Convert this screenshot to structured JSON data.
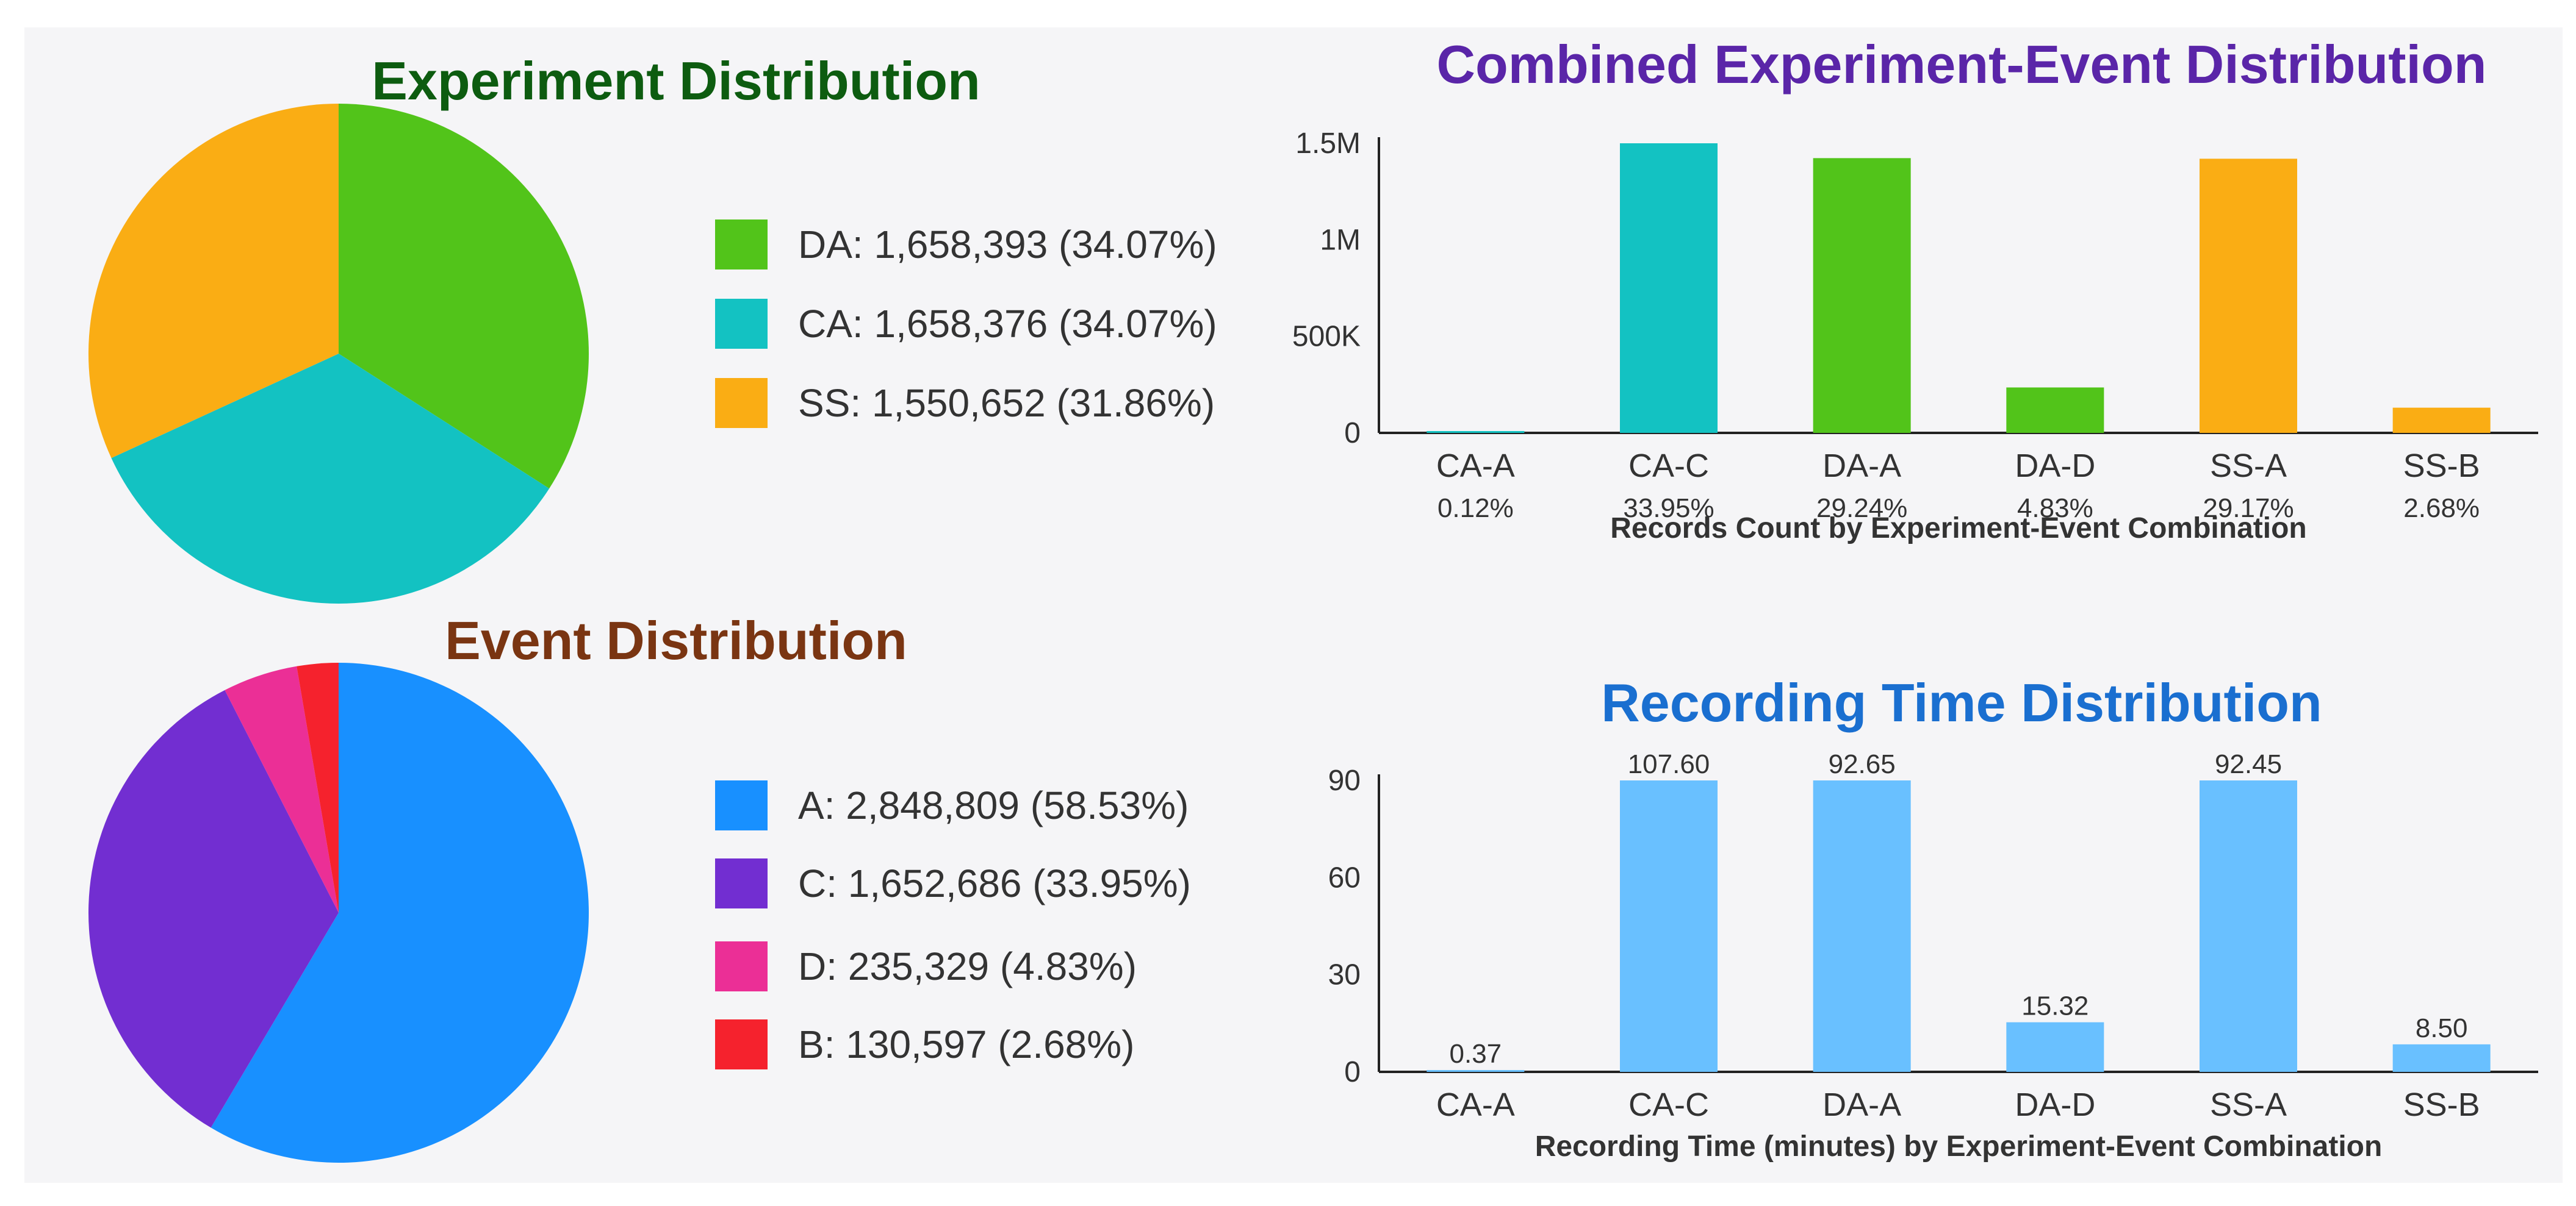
{
  "colors": {
    "DA": "#52c41a",
    "CA": "#13c2c2",
    "SS": "#faad14",
    "A": "#1890ff",
    "C": "#722ed1",
    "D": "#eb2f96",
    "B": "#f5222d",
    "time_bar": "#69c0ff"
  },
  "chart_data": [
    {
      "type": "pie",
      "title": "Experiment Distribution",
      "slices": [
        {
          "key": "DA",
          "value": 1658393,
          "legend": "DA: 1,658,393 (34.07%)"
        },
        {
          "key": "CA",
          "value": 1658376,
          "legend": "CA: 1,658,376 (34.07%)"
        },
        {
          "key": "SS",
          "value": 1550652,
          "legend": "SS: 1,550,652 (31.86%)"
        }
      ]
    },
    {
      "type": "pie",
      "title": "Event Distribution",
      "slices": [
        {
          "key": "A",
          "value": 2848809,
          "legend": "A: 2,848,809 (58.53%)"
        },
        {
          "key": "C",
          "value": 1652686,
          "legend": "C: 1,652,686 (33.95%)"
        },
        {
          "key": "D",
          "value": 235329,
          "legend": "D: 235,329 (4.83%)"
        },
        {
          "key": "B",
          "value": 130597,
          "legend": "B: 130,597 (2.68%)"
        }
      ]
    },
    {
      "type": "bar",
      "title": "Combined Experiment-Event Distribution",
      "xlabel": "Records Count by Experiment-Event Combination",
      "categories": [
        "CA-A",
        "CA-C",
        "DA-A",
        "DA-D",
        "SS-A",
        "SS-B"
      ],
      "values": [
        5700,
        1652686,
        1423100,
        235329,
        1420000,
        130597
      ],
      "percent_labels": [
        "0.12%",
        "33.95%",
        "29.24%",
        "4.83%",
        "29.17%",
        "2.68%"
      ],
      "bar_color_keys": [
        "CA",
        "CA",
        "DA",
        "DA",
        "SS",
        "SS"
      ],
      "ylim": [
        0,
        1500000
      ],
      "yticks": [
        0,
        500000,
        1000000,
        1500000
      ],
      "ytick_labels": [
        "0",
        "500K",
        "1M",
        "1.5M"
      ]
    },
    {
      "type": "bar",
      "title": "Recording Time Distribution",
      "xlabel": "Recording Time (minutes) by Experiment-Event Combination",
      "categories": [
        "CA-A",
        "CA-C",
        "DA-A",
        "DA-D",
        "SS-A",
        "SS-B"
      ],
      "values": [
        0.37,
        107.6,
        92.65,
        15.32,
        92.45,
        8.5
      ],
      "value_labels": [
        "0.37",
        "107.60",
        "92.65",
        "15.32",
        "92.45",
        "8.50"
      ],
      "ylim": [
        0,
        90
      ],
      "yticks": [
        0,
        30,
        60,
        90
      ],
      "ytick_labels": [
        "0",
        "30",
        "60",
        "90"
      ]
    }
  ]
}
